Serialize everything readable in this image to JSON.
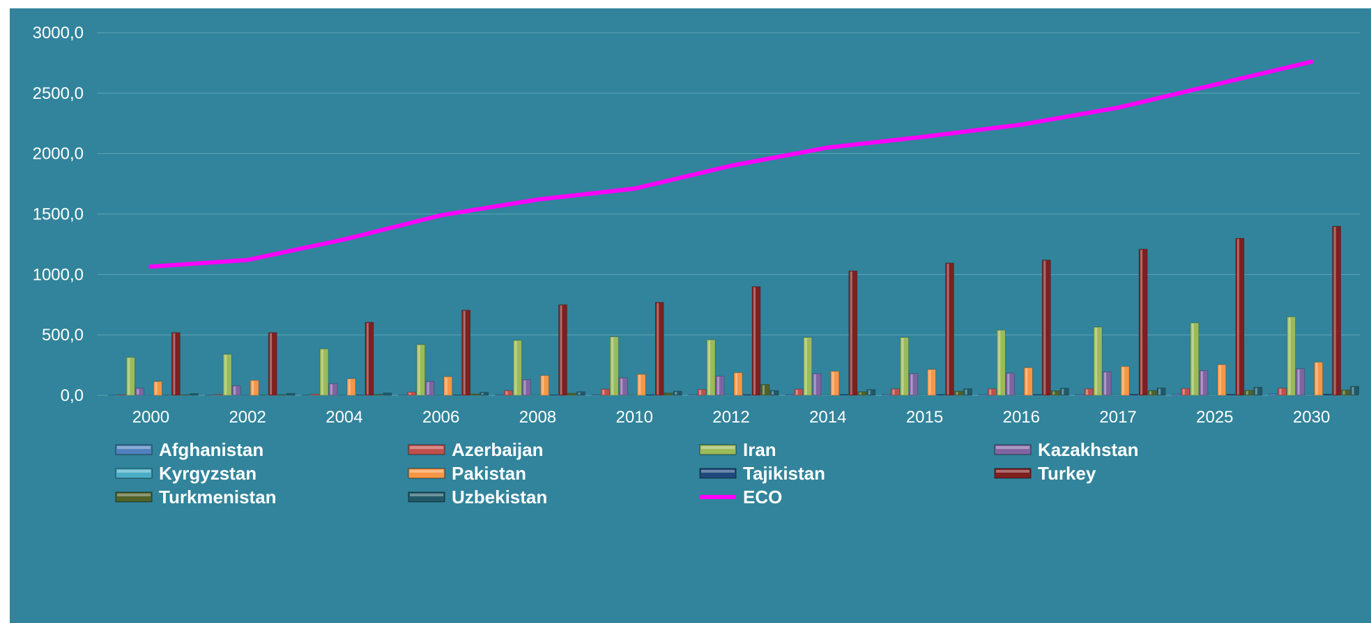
{
  "chart_data": {
    "type": "bar",
    "title": "",
    "xlabel": "",
    "ylabel": "",
    "ylim": [
      0,
      3000
    ],
    "grid": true,
    "legend_position": "bottom",
    "categories": [
      "2000",
      "2002",
      "2004",
      "2006",
      "2008",
      "2010",
      "2012",
      "2014",
      "2015",
      "2016",
      "2017",
      "2025",
      "2030"
    ],
    "y_tick_labels": [
      "0,0",
      "500,0",
      "1000,0",
      "1500,0",
      "2000,0",
      "2500,0",
      "3000,0"
    ],
    "series": [
      {
        "name": "Afghanistan",
        "type": "bar",
        "color": "#4f81bd",
        "values": [
          3,
          3,
          4,
          5,
          6,
          7,
          8,
          9,
          9,
          10,
          10,
          12,
          13
        ]
      },
      {
        "name": "Azerbaijan",
        "type": "bar",
        "color": "#c0504d",
        "values": [
          6,
          7,
          11,
          28,
          40,
          52,
          50,
          52,
          54,
          55,
          56,
          58,
          60
        ]
      },
      {
        "name": "Iran",
        "type": "bar",
        "color": "#9bbb59",
        "values": [
          315,
          340,
          385,
          420,
          455,
          485,
          460,
          480,
          480,
          540,
          565,
          600,
          650
        ]
      },
      {
        "name": "Kazakhstan",
        "type": "bar",
        "color": "#8064a2",
        "values": [
          60,
          80,
          98,
          115,
          130,
          145,
          160,
          180,
          180,
          185,
          195,
          205,
          220
        ]
      },
      {
        "name": "Kyrgyzstan",
        "type": "bar",
        "color": "#4bacc6",
        "values": [
          2,
          3,
          3,
          4,
          5,
          5,
          6,
          7,
          7,
          7,
          7,
          8,
          9
        ]
      },
      {
        "name": "Pakistan",
        "type": "bar",
        "color": "#f79646",
        "values": [
          115,
          125,
          138,
          155,
          165,
          175,
          188,
          200,
          215,
          230,
          240,
          255,
          275
        ]
      },
      {
        "name": "Tajikistan",
        "type": "bar",
        "color": "#1f497d",
        "values": [
          2,
          2,
          3,
          4,
          5,
          6,
          7,
          8,
          8,
          8,
          9,
          10,
          11
        ]
      },
      {
        "name": "Turkey",
        "type": "bar",
        "color": "#7f1f1f",
        "values": [
          520,
          520,
          605,
          705,
          750,
          770,
          900,
          1030,
          1095,
          1120,
          1210,
          1300,
          1400
        ]
      },
      {
        "name": "Turkmenistan",
        "type": "bar",
        "color": "#4f6228",
        "values": [
          5,
          6,
          8,
          12,
          18,
          20,
          90,
          30,
          35,
          38,
          40,
          42,
          45
        ]
      },
      {
        "name": "Uzbekistan",
        "type": "bar",
        "color": "#215968",
        "values": [
          15,
          17,
          20,
          25,
          30,
          35,
          40,
          48,
          55,
          60,
          62,
          68,
          75
        ]
      },
      {
        "name": "ECO",
        "type": "line",
        "color": "#ff00ff",
        "values": [
          1065,
          1120,
          1290,
          1490,
          1620,
          1710,
          1900,
          2050,
          2140,
          2240,
          2380,
          2570,
          2760
        ]
      }
    ]
  }
}
